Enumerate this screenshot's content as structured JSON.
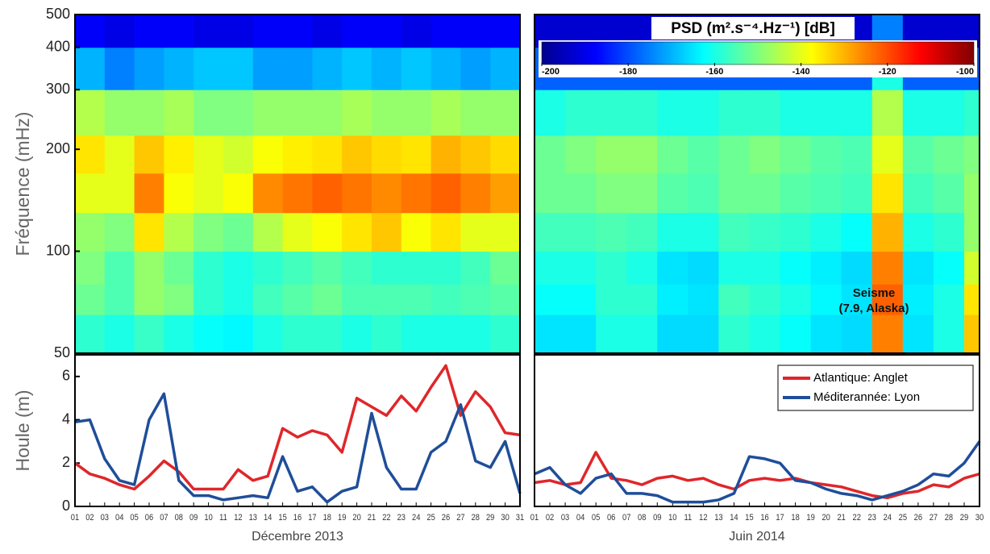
{
  "chart_data": [
    {
      "type": "heatmap",
      "ylabel": "Fréquence (mHz)",
      "log_y": true,
      "ylim": [
        50,
        500
      ],
      "yticks": [
        50,
        100,
        200,
        300,
        400,
        500
      ],
      "xlim": [
        1,
        31
      ],
      "colorscale": "jet",
      "clim": [
        -200,
        -100
      ],
      "x_bins": [
        1,
        3,
        5,
        7,
        9,
        11,
        13,
        15,
        17,
        19,
        21,
        23,
        25,
        27,
        29,
        31
      ],
      "y_bins": [
        50,
        65,
        80,
        100,
        130,
        170,
        220,
        300,
        400,
        500
      ],
      "values": [
        [
          -158,
          -160,
          -157,
          -160,
          -162,
          -163,
          -160,
          -158,
          -158,
          -160,
          -158,
          -160,
          -160,
          -160,
          -158
        ],
        [
          -152,
          -155,
          -148,
          -150,
          -158,
          -160,
          -156,
          -154,
          -152,
          -155,
          -155,
          -155,
          -156,
          -155,
          -154
        ],
        [
          -150,
          -155,
          -148,
          -152,
          -158,
          -160,
          -158,
          -156,
          -154,
          -156,
          -158,
          -158,
          -158,
          -156,
          -152
        ],
        [
          -148,
          -150,
          -135,
          -145,
          -150,
          -152,
          -145,
          -140,
          -138,
          -135,
          -132,
          -138,
          -135,
          -140,
          -140
        ],
        [
          -140,
          -140,
          -125,
          -138,
          -140,
          -138,
          -126,
          -124,
          -122,
          -124,
          -126,
          -124,
          -122,
          -125,
          -128
        ],
        [
          -135,
          -140,
          -132,
          -136,
          -140,
          -142,
          -138,
          -136,
          -135,
          -132,
          -134,
          -135,
          -130,
          -132,
          -134
        ],
        [
          -145,
          -148,
          -148,
          -146,
          -150,
          -150,
          -148,
          -148,
          -148,
          -146,
          -148,
          -148,
          -146,
          -148,
          -148
        ],
        [
          -170,
          -175,
          -172,
          -170,
          -168,
          -168,
          -172,
          -172,
          -170,
          -168,
          -170,
          -168,
          -170,
          -172,
          -170
        ],
        [
          -188,
          -190,
          -188,
          -188,
          -190,
          -190,
          -188,
          -188,
          -190,
          -188,
          -188,
          -190,
          -188,
          -188,
          -188
        ]
      ]
    },
    {
      "type": "heatmap",
      "log_y": true,
      "ylim": [
        50,
        500
      ],
      "xlim": [
        1,
        30
      ],
      "colorscale": "jet",
      "clim": [
        -200,
        -100
      ],
      "colorbar_title": "PSD (m².s⁻⁴.Hz⁻¹) [dB]",
      "colorbar_ticks": [
        -200,
        -180,
        -160,
        -140,
        -120,
        -100
      ],
      "annotation": [
        "Seisme",
        "(7.9, Alaska)"
      ],
      "x_bins": [
        1,
        3,
        5,
        7,
        9,
        11,
        13,
        15,
        17,
        19,
        21,
        23,
        25,
        27,
        29,
        30
      ],
      "y_bins": [
        50,
        65,
        80,
        100,
        130,
        170,
        220,
        300,
        400,
        500
      ],
      "values": [
        [
          -165,
          -165,
          -160,
          -160,
          -166,
          -166,
          -158,
          -160,
          -162,
          -165,
          -166,
          -125,
          -165,
          -160,
          -132
        ],
        [
          -162,
          -162,
          -158,
          -158,
          -164,
          -165,
          -156,
          -158,
          -160,
          -163,
          -165,
          -122,
          -164,
          -160,
          -135
        ],
        [
          -160,
          -160,
          -158,
          -160,
          -165,
          -166,
          -160,
          -160,
          -162,
          -164,
          -166,
          -125,
          -165,
          -162,
          -142
        ],
        [
          -156,
          -156,
          -155,
          -156,
          -160,
          -160,
          -156,
          -157,
          -158,
          -160,
          -162,
          -130,
          -160,
          -158,
          -148
        ],
        [
          -152,
          -152,
          -150,
          -150,
          -154,
          -155,
          -152,
          -152,
          -154,
          -155,
          -156,
          -135,
          -156,
          -154,
          -148
        ],
        [
          -152,
          -150,
          -148,
          -148,
          -152,
          -154,
          -152,
          -150,
          -152,
          -154,
          -155,
          -140,
          -154,
          -152,
          -150
        ],
        [
          -160,
          -158,
          -158,
          -158,
          -160,
          -160,
          -158,
          -158,
          -160,
          -160,
          -160,
          -145,
          -160,
          -160,
          -158
        ],
        [
          -178,
          -178,
          -178,
          -178,
          -178,
          -178,
          -178,
          -178,
          -178,
          -178,
          -178,
          -160,
          -178,
          -178,
          -178
        ],
        [
          -192,
          -192,
          -192,
          -192,
          -192,
          -192,
          -192,
          -192,
          -192,
          -192,
          -192,
          -175,
          -192,
          -192,
          -192
        ]
      ]
    },
    {
      "type": "line",
      "ylabel": "Houle (m)",
      "xlabel": "Décembre 2013",
      "ylim": [
        0,
        7
      ],
      "yticks": [
        0,
        2,
        4,
        6
      ],
      "categories": [
        "01",
        "02",
        "03",
        "04",
        "05",
        "06",
        "07",
        "08",
        "09",
        "10",
        "11",
        "12",
        "13",
        "14",
        "15",
        "16",
        "17",
        "18",
        "19",
        "20",
        "21",
        "22",
        "23",
        "24",
        "25",
        "26",
        "27",
        "28",
        "29",
        "30",
        "31"
      ],
      "series": [
        {
          "name": "Atlantique: Anglet",
          "color": "#e0262a",
          "values": [
            2.0,
            1.5,
            1.3,
            1.0,
            0.8,
            1.4,
            2.1,
            1.6,
            0.8,
            0.8,
            0.8,
            1.7,
            1.2,
            1.4,
            3.6,
            3.2,
            3.5,
            3.3,
            2.5,
            5.0,
            4.6,
            4.2,
            5.1,
            4.4,
            5.5,
            6.5,
            4.2,
            5.3,
            4.6,
            3.4,
            3.3
          ]
        },
        {
          "name": "Méditerannée: Lyon",
          "color": "#1f4e99",
          "values": [
            3.9,
            4.0,
            2.2,
            1.2,
            1.0,
            4.0,
            5.2,
            1.2,
            0.5,
            0.5,
            0.3,
            0.4,
            0.5,
            0.4,
            2.3,
            0.7,
            0.9,
            0.2,
            0.7,
            0.9,
            4.3,
            1.8,
            0.8,
            0.8,
            2.5,
            3.0,
            4.7,
            2.1,
            1.8,
            3.0,
            0.6
          ]
        }
      ]
    },
    {
      "type": "line",
      "xlabel": "Juin 2014",
      "ylim": [
        0,
        7
      ],
      "legend": "upper right",
      "categories": [
        "01",
        "02",
        "03",
        "04",
        "05",
        "06",
        "07",
        "08",
        "09",
        "10",
        "11",
        "12",
        "13",
        "14",
        "15",
        "16",
        "17",
        "18",
        "19",
        "20",
        "21",
        "22",
        "23",
        "24",
        "25",
        "26",
        "27",
        "28",
        "29",
        "30"
      ],
      "series": [
        {
          "name": "Atlantique: Anglet",
          "color": "#e0262a",
          "values": [
            1.1,
            1.2,
            1.0,
            1.1,
            2.5,
            1.3,
            1.2,
            1.0,
            1.3,
            1.4,
            1.2,
            1.3,
            1.0,
            0.8,
            1.2,
            1.3,
            1.2,
            1.3,
            1.1,
            1.0,
            0.9,
            0.7,
            0.5,
            0.4,
            0.6,
            0.7,
            1.0,
            0.9,
            1.3,
            1.5
          ]
        },
        {
          "name": "Méditerannée: Lyon",
          "color": "#1f4e99",
          "values": [
            1.5,
            1.8,
            1.0,
            0.6,
            1.3,
            1.5,
            0.6,
            0.6,
            0.5,
            0.2,
            0.2,
            0.2,
            0.3,
            0.6,
            2.3,
            2.2,
            2.0,
            1.2,
            1.1,
            0.8,
            0.6,
            0.5,
            0.3,
            0.5,
            0.7,
            1.0,
            1.5,
            1.4,
            2.0,
            3.0
          ]
        }
      ]
    }
  ]
}
